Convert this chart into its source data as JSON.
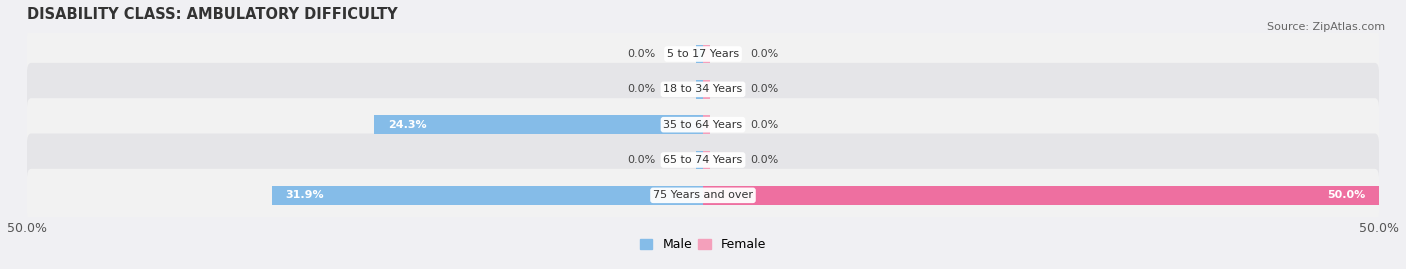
{
  "title": "DISABILITY CLASS: AMBULATORY DIFFICULTY",
  "source": "Source: ZipAtlas.com",
  "categories": [
    "5 to 17 Years",
    "18 to 34 Years",
    "35 to 64 Years",
    "65 to 74 Years",
    "75 Years and over"
  ],
  "male_values": [
    0.0,
    0.0,
    24.3,
    0.0,
    31.9
  ],
  "female_values": [
    0.0,
    0.0,
    0.0,
    0.0,
    50.0
  ],
  "xlim": 50.0,
  "male_color": "#85BCE8",
  "female_color": "#F4A0BB",
  "female_bold_color": "#EE6FA0",
  "row_bg_light": "#F2F2F2",
  "row_bg_dark": "#E5E5E8",
  "fig_bg": "#F0F0F3",
  "bar_height": 0.52,
  "title_fontsize": 10.5,
  "source_fontsize": 8,
  "tick_fontsize": 9,
  "label_fontsize": 8,
  "category_fontsize": 8,
  "legend_fontsize": 9
}
